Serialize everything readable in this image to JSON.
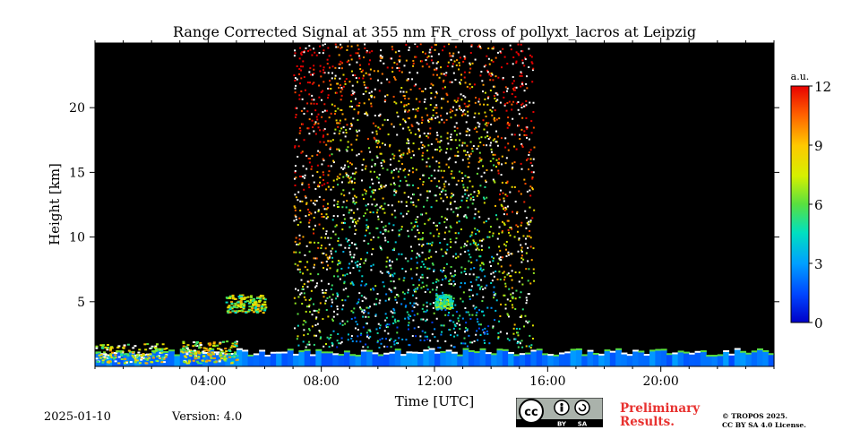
{
  "chart_data": {
    "type": "heatmap",
    "title": "Range Corrected Signal at 355 nm FR_cross of pollyxt_lacros at Leipzig",
    "xlabel": "Time [UTC]",
    "ylabel": "Height [km]",
    "xlim": [
      0,
      24
    ],
    "ylim": [
      0,
      25
    ],
    "x_ticks": [
      {
        "value": 4,
        "label": "04:00"
      },
      {
        "value": 8,
        "label": "08:00"
      },
      {
        "value": 12,
        "label": "12:00"
      },
      {
        "value": 16,
        "label": "16:00"
      },
      {
        "value": 20,
        "label": "20:00"
      }
    ],
    "y_ticks": [
      {
        "value": 5,
        "label": "5"
      },
      {
        "value": 10,
        "label": "10"
      },
      {
        "value": 15,
        "label": "15"
      },
      {
        "value": 20,
        "label": "20"
      }
    ],
    "colorbar": {
      "unit": "a.u.",
      "range": [
        0,
        12
      ],
      "ticks": [
        {
          "value": 0,
          "label": "0"
        },
        {
          "value": 3,
          "label": "3"
        },
        {
          "value": 6,
          "label": "6"
        },
        {
          "value": 9,
          "label": "9"
        },
        {
          "value": 12,
          "label": "12"
        }
      ]
    },
    "background_color": "#000000",
    "features": {
      "boundary_layer_top_km": 1.5,
      "noisy_daytime_window_utc": [
        7.0,
        15.5
      ],
      "aerosol_layers": [
        {
          "time_utc": [
            0.0,
            2.5
          ],
          "height_km": [
            0.3,
            1.8
          ],
          "signal": 10
        },
        {
          "time_utc": [
            3.0,
            5.0
          ],
          "height_km": [
            0.3,
            2.0
          ],
          "signal": 10
        },
        {
          "time_utc": [
            4.6,
            6.0
          ],
          "height_km": [
            4.2,
            5.6
          ],
          "signal": 9
        },
        {
          "time_utc": [
            12.0,
            12.6
          ],
          "height_km": [
            4.5,
            5.6
          ],
          "signal": 7
        }
      ]
    }
  },
  "footer": {
    "date": "2025-01-10",
    "version": "Version: 4.0",
    "preliminary_line1": "Preliminary",
    "preliminary_line2": "Results.",
    "license_line1": "© TROPOS 2025.",
    "license_line2": "CC BY SA 4.0 License.",
    "badge_by": "BY",
    "badge_sa": "SA"
  }
}
